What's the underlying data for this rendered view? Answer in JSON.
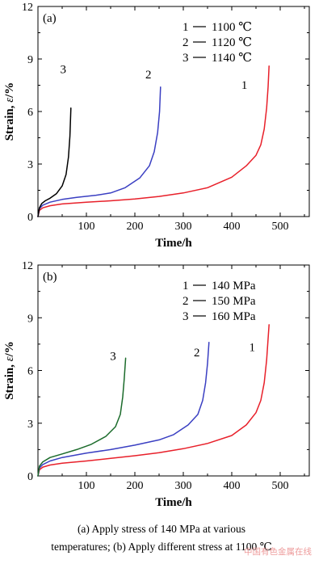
{
  "chart_data": [
    {
      "type": "line",
      "panel_label": "(a)",
      "xlabel": "Time/h",
      "ylabel_prefix": "Strain, ",
      "ylabel_symbol": "ε",
      "ylabel_suffix": "/%",
      "xlim": [
        0,
        560
      ],
      "ylim": [
        0,
        12
      ],
      "xticks": [
        100,
        200,
        300,
        400,
        500
      ],
      "yticks": [
        0,
        3,
        6,
        9,
        12
      ],
      "grid": false,
      "legend_placement": "top-right",
      "legend": [
        {
          "number": "1",
          "text": "1100 ℃"
        },
        {
          "number": "2",
          "text": "1120 ℃"
        },
        {
          "number": "3",
          "text": "1140 ℃"
        }
      ],
      "series": [
        {
          "id": "1",
          "color": "#e8202a",
          "points": [
            [
              0,
              0
            ],
            [
              3,
              0.35
            ],
            [
              10,
              0.5
            ],
            [
              25,
              0.62
            ],
            [
              50,
              0.72
            ],
            [
              100,
              0.82
            ],
            [
              150,
              0.9
            ],
            [
              200,
              1.0
            ],
            [
              250,
              1.15
            ],
            [
              300,
              1.35
            ],
            [
              350,
              1.65
            ],
            [
              400,
              2.25
            ],
            [
              430,
              2.9
            ],
            [
              450,
              3.5
            ],
            [
              460,
              4.1
            ],
            [
              467,
              5.0
            ],
            [
              472,
              6.2
            ],
            [
              475,
              7.4
            ],
            [
              477,
              8.6
            ]
          ]
        },
        {
          "id": "2",
          "color": "#3a3fc2",
          "points": [
            [
              0,
              0
            ],
            [
              3,
              0.45
            ],
            [
              10,
              0.65
            ],
            [
              25,
              0.82
            ],
            [
              50,
              0.98
            ],
            [
              80,
              1.1
            ],
            [
              120,
              1.22
            ],
            [
              150,
              1.35
            ],
            [
              180,
              1.65
            ],
            [
              210,
              2.2
            ],
            [
              230,
              2.9
            ],
            [
              240,
              3.7
            ],
            [
              247,
              4.8
            ],
            [
              251,
              6.0
            ],
            [
              253,
              7.4
            ]
          ]
        },
        {
          "id": "3",
          "color": "#000000",
          "points": [
            [
              0,
              0
            ],
            [
              3,
              0.5
            ],
            [
              8,
              0.75
            ],
            [
              15,
              0.9
            ],
            [
              25,
              1.05
            ],
            [
              38,
              1.3
            ],
            [
              50,
              1.75
            ],
            [
              58,
              2.4
            ],
            [
              63,
              3.4
            ],
            [
              66,
              4.6
            ],
            [
              68,
              6.2
            ]
          ]
        }
      ],
      "annotations": [
        {
          "text": "1",
          "x": 426,
          "y": 7.3
        },
        {
          "text": "2",
          "x": 228,
          "y": 7.9
        },
        {
          "text": "3",
          "x": 52,
          "y": 8.2
        }
      ]
    },
    {
      "type": "line",
      "panel_label": "(b)",
      "xlabel": "Time/h",
      "ylabel_prefix": "Strain, ",
      "ylabel_symbol": "ε",
      "ylabel_suffix": "/%",
      "xlim": [
        0,
        560
      ],
      "ylim": [
        0,
        12
      ],
      "xticks": [
        100,
        200,
        300,
        400,
        500
      ],
      "yticks": [
        0,
        3,
        6,
        9,
        12
      ],
      "grid": false,
      "legend_placement": "top-right",
      "legend": [
        {
          "number": "1",
          "text": "140 MPa"
        },
        {
          "number": "2",
          "text": "150 MPa"
        },
        {
          "number": "3",
          "text": "160 MPa"
        }
      ],
      "series": [
        {
          "id": "1",
          "color": "#e8202a",
          "points": [
            [
              0,
              0
            ],
            [
              3,
              0.35
            ],
            [
              10,
              0.5
            ],
            [
              25,
              0.62
            ],
            [
              50,
              0.72
            ],
            [
              100,
              0.85
            ],
            [
              150,
              1.0
            ],
            [
              200,
              1.15
            ],
            [
              250,
              1.32
            ],
            [
              300,
              1.55
            ],
            [
              350,
              1.85
            ],
            [
              400,
              2.3
            ],
            [
              430,
              2.9
            ],
            [
              450,
              3.6
            ],
            [
              460,
              4.3
            ],
            [
              467,
              5.3
            ],
            [
              472,
              6.6
            ],
            [
              477,
              8.6
            ]
          ]
        },
        {
          "id": "2",
          "color": "#3a3fc2",
          "points": [
            [
              0,
              0
            ],
            [
              3,
              0.45
            ],
            [
              10,
              0.65
            ],
            [
              25,
              0.85
            ],
            [
              50,
              1.05
            ],
            [
              100,
              1.3
            ],
            [
              150,
              1.5
            ],
            [
              200,
              1.75
            ],
            [
              250,
              2.05
            ],
            [
              280,
              2.35
            ],
            [
              310,
              2.9
            ],
            [
              330,
              3.5
            ],
            [
              340,
              4.3
            ],
            [
              346,
              5.3
            ],
            [
              350,
              6.4
            ],
            [
              353,
              7.6
            ]
          ]
        },
        {
          "id": "3",
          "color": "#1b6b2b",
          "points": [
            [
              0,
              0
            ],
            [
              3,
              0.55
            ],
            [
              10,
              0.8
            ],
            [
              25,
              1.05
            ],
            [
              50,
              1.25
            ],
            [
              80,
              1.5
            ],
            [
              110,
              1.8
            ],
            [
              140,
              2.25
            ],
            [
              160,
              2.8
            ],
            [
              170,
              3.5
            ],
            [
              175,
              4.5
            ],
            [
              178,
              5.5
            ],
            [
              181,
              6.7
            ]
          ]
        }
      ],
      "annotations": [
        {
          "text": "1",
          "x": 442,
          "y": 7.1
        },
        {
          "text": "2",
          "x": 328,
          "y": 6.8
        },
        {
          "text": "3",
          "x": 155,
          "y": 6.6
        }
      ]
    }
  ],
  "caption": {
    "line1": "(a)  Apply stress of 140 MPa at various",
    "line2": "temperatures; (b) Apply different stress at 1100 ℃"
  },
  "watermark": "中国有色金属在线"
}
